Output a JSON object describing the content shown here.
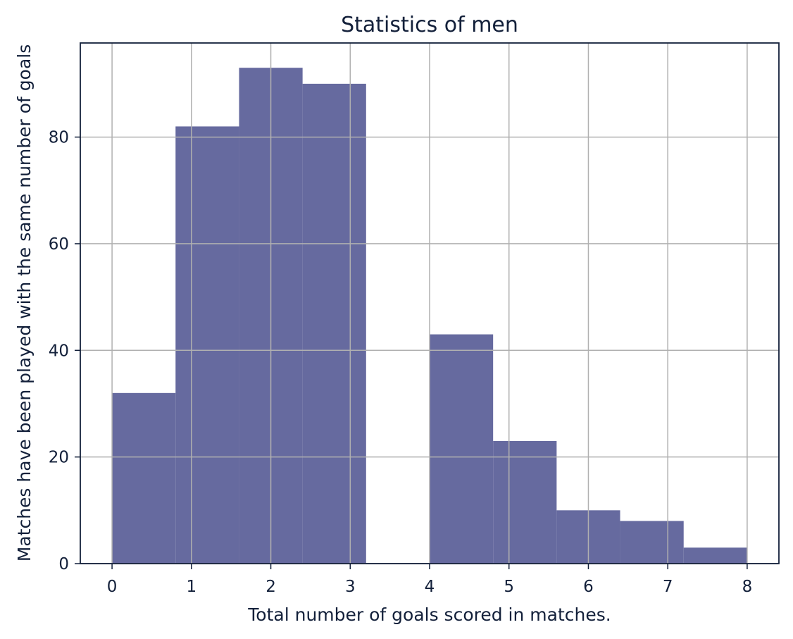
{
  "chart_data": {
    "type": "bar",
    "title": "Statistics of men",
    "xlabel": "Total number of goals scored in matches.",
    "ylabel": "Matches have been played with the same number of goals",
    "bins": [
      {
        "x_start": 0.0,
        "x_end": 0.8,
        "value": 32
      },
      {
        "x_start": 0.8,
        "x_end": 1.6,
        "value": 82
      },
      {
        "x_start": 1.6,
        "x_end": 2.4,
        "value": 93
      },
      {
        "x_start": 2.4,
        "x_end": 3.2,
        "value": 90
      },
      {
        "x_start": 3.2,
        "x_end": 4.0,
        "value": 0
      },
      {
        "x_start": 4.0,
        "x_end": 4.8,
        "value": 43
      },
      {
        "x_start": 4.8,
        "x_end": 5.6,
        "value": 23
      },
      {
        "x_start": 5.6,
        "x_end": 6.4,
        "value": 10
      },
      {
        "x_start": 6.4,
        "x_end": 7.2,
        "value": 8
      },
      {
        "x_start": 7.2,
        "x_end": 8.0,
        "value": 3
      }
    ],
    "xlim": [
      -0.4,
      8.4
    ],
    "ylim": [
      0,
      97.65
    ],
    "xticks": [
      0,
      1,
      2,
      3,
      4,
      5,
      6,
      7,
      8
    ],
    "yticks": [
      0,
      20,
      40,
      60,
      80
    ],
    "xtick_labels": [
      "0",
      "1",
      "2",
      "3",
      "4",
      "5",
      "6",
      "7",
      "8"
    ],
    "ytick_labels": [
      "0",
      "20",
      "40",
      "60",
      "80"
    ],
    "grid": true,
    "colors": {
      "bar": "#666a9f",
      "grid": "#b0b0b0",
      "axis": "#13203a"
    }
  }
}
